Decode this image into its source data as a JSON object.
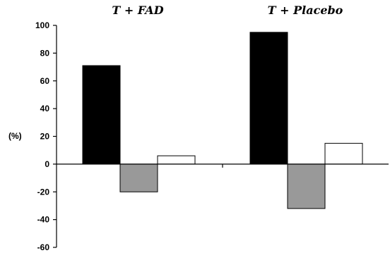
{
  "chart_data": {
    "type": "bar",
    "categories": [
      "T + FAD",
      "T + Placebo"
    ],
    "series": [
      {
        "values": [
          71,
          95
        ],
        "color": "#000000"
      },
      {
        "values": [
          -20,
          -32
        ],
        "color": "#999999"
      },
      {
        "values": [
          6,
          15
        ],
        "color": "#ffffff"
      }
    ],
    "ylabel": "(%)",
    "ylim": [
      -60,
      100
    ],
    "yticks": [
      100,
      80,
      60,
      40,
      20,
      0,
      -20,
      -40,
      -60
    ],
    "grid": false,
    "legend": "none"
  }
}
